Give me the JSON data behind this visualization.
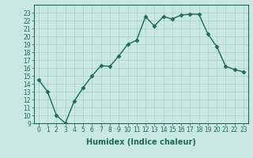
{
  "x": [
    0,
    1,
    2,
    3,
    4,
    5,
    6,
    7,
    8,
    9,
    10,
    11,
    12,
    13,
    14,
    15,
    16,
    17,
    18,
    19,
    20,
    21,
    22,
    23
  ],
  "y": [
    14.5,
    13.0,
    10.0,
    9.0,
    11.8,
    13.5,
    15.0,
    16.3,
    16.2,
    17.5,
    19.0,
    19.5,
    22.5,
    21.3,
    22.5,
    22.2,
    22.7,
    22.8,
    22.8,
    20.3,
    18.7,
    16.2,
    15.8,
    15.5
  ],
  "line_color": "#1a6b5a",
  "marker": "D",
  "marker_size": 2.5,
  "linewidth": 1.0,
  "bg_color": "#c8e8e0",
  "grid_color": "#aacfc8",
  "xlabel": "Humidex (Indice chaleur)",
  "xlim": [
    -0.5,
    23.5
  ],
  "ylim": [
    9,
    24
  ],
  "xticks": [
    0,
    1,
    2,
    3,
    4,
    5,
    6,
    7,
    8,
    9,
    10,
    11,
    12,
    13,
    14,
    15,
    16,
    17,
    18,
    19,
    20,
    21,
    22,
    23
  ],
  "xtick_labels": [
    "0",
    "1",
    "2",
    "3",
    "4",
    "5",
    "6",
    "7",
    "8",
    "9",
    "10",
    "11",
    "12",
    "13",
    "14",
    "15",
    "16",
    "17",
    "18",
    "19",
    "20",
    "21",
    "22",
    "23"
  ],
  "yticks": [
    9,
    10,
    11,
    12,
    13,
    14,
    15,
    16,
    17,
    18,
    19,
    20,
    21,
    22,
    23
  ],
  "ytick_labels": [
    "9",
    "10",
    "11",
    "12",
    "13",
    "14",
    "15",
    "16",
    "17",
    "18",
    "19",
    "20",
    "21",
    "22",
    "23"
  ],
  "tick_color": "#1a6b5a",
  "label_color": "#1a6b5a",
  "spine_color": "#1a6b5a",
  "tick_fontsize": 5.5,
  "xlabel_fontsize": 7.0
}
